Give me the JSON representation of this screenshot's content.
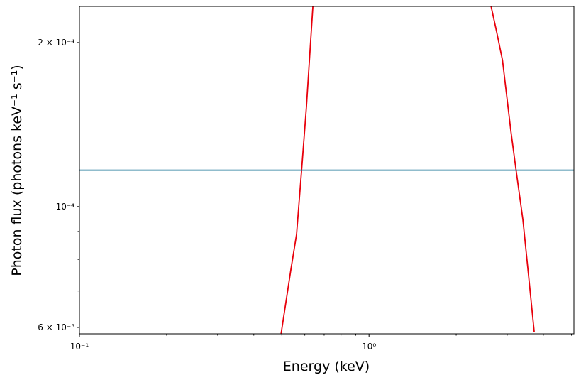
{
  "chart_data": {
    "type": "line",
    "xlabel": "Energy (keV)",
    "ylabel": "Photon flux (photons keV⁻¹ s⁻¹)",
    "xscale": "log",
    "yscale": "log",
    "xlim": [
      0.1,
      5.1
    ],
    "ylim": [
      5.84e-05,
      0.000233
    ],
    "xticks": [
      {
        "value": 0.1,
        "label": "10⁻¹"
      },
      {
        "value": 1,
        "label": "10⁰"
      }
    ],
    "xminorticks": [
      0.2,
      0.3,
      0.4,
      0.5,
      0.6,
      0.7,
      0.8,
      0.9,
      2,
      3,
      4,
      5
    ],
    "yticks": [
      {
        "value": 6e-05,
        "label": "6 × 10⁻⁵"
      },
      {
        "value": 0.0001,
        "label": "10⁻⁴"
      },
      {
        "value": 0.0002,
        "label": "2 × 10⁻⁴"
      }
    ],
    "yminorticks": [
      7e-05,
      8e-05,
      9e-05
    ],
    "series": [
      {
        "color": "#e8000b",
        "x": [
          0.497,
          0.537,
          0.562,
          0.585,
          0.608,
          0.64,
          null,
          2.64,
          2.76,
          2.89,
          3.09,
          3.22,
          3.4,
          3.56,
          3.72
        ],
        "values": [
          5.84e-05,
          7.65e-05,
          8.89e-05,
          0.0001166,
          0.0001527,
          0.000233,
          null,
          0.000233,
          0.000209,
          0.0001856,
          0.0001375,
          0.0001166,
          9.45e-05,
          7.43e-05,
          5.88e-05
        ]
      },
      {
        "color": "#20789a",
        "x": [
          0.1,
          5.1
        ],
        "values": [
          0.0001166,
          0.0001166
        ]
      }
    ]
  }
}
